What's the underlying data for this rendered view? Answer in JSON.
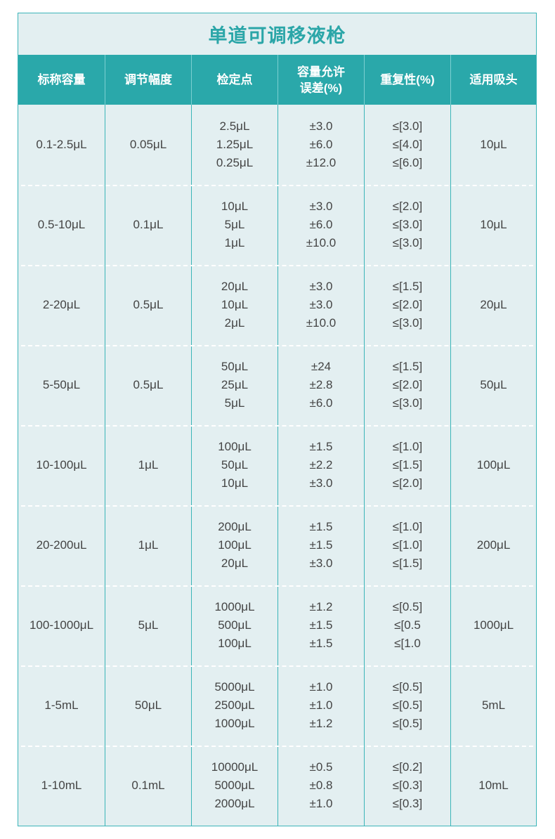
{
  "title": "单道可调移液枪",
  "headers": [
    "标称容量",
    "调节幅度",
    "检定点",
    "容量允许\n误差(%)",
    "重复性(%)",
    "适用吸头"
  ],
  "rows": [
    {
      "range": "0.1-2.5μL",
      "step": "0.05μL",
      "points": [
        "2.5μL",
        "1.25μL",
        "0.25μL"
      ],
      "error": [
        "±3.0",
        "±6.0",
        "±12.0"
      ],
      "repeat": [
        "≤[3.0]",
        "≤[4.0]",
        "≤[6.0]"
      ],
      "tip": "10μL"
    },
    {
      "range": "0.5-10μL",
      "step": "0.1μL",
      "points": [
        "10μL",
        "5μL",
        "1μL"
      ],
      "error": [
        "±3.0",
        "±6.0",
        "±10.0"
      ],
      "repeat": [
        "≤[2.0]",
        "≤[3.0]",
        "≤[3.0]"
      ],
      "tip": "10μL"
    },
    {
      "range": "2-20μL",
      "step": "0.5μL",
      "points": [
        "20μL",
        "10μL",
        "2μL"
      ],
      "error": [
        "±3.0",
        "±3.0",
        "±10.0"
      ],
      "repeat": [
        "≤[1.5]",
        "≤[2.0]",
        "≤[3.0]"
      ],
      "tip": "20μL"
    },
    {
      "range": "5-50μL",
      "step": "0.5μL",
      "points": [
        "50μL",
        "25μL",
        "5μL"
      ],
      "error": [
        "±24",
        "±2.8",
        "±6.0"
      ],
      "repeat": [
        "≤[1.5]",
        "≤[2.0]",
        "≤[3.0]"
      ],
      "tip": "50μL"
    },
    {
      "range": "10-100μL",
      "step": "1μL",
      "points": [
        "100μL",
        "50μL",
        "10μL"
      ],
      "error": [
        "±1.5",
        "±2.2",
        "±3.0"
      ],
      "repeat": [
        "≤[1.0]",
        "≤[1.5]",
        "≤[2.0]"
      ],
      "tip": "100μL"
    },
    {
      "range": "20-200uL",
      "step": "1μL",
      "points": [
        "200μL",
        "100μL",
        "20μL"
      ],
      "error": [
        "±1.5",
        "±1.5",
        "±3.0"
      ],
      "repeat": [
        "≤[1.0]",
        "≤[1.0]",
        "≤[1.5]"
      ],
      "tip": "200μL"
    },
    {
      "range": "100-1000μL",
      "step": "5μL",
      "points": [
        "1000μL",
        "500μL",
        "100μL"
      ],
      "error": [
        "±1.2",
        "±1.5",
        "±1.5"
      ],
      "repeat": [
        "≤[0.5]",
        "≤[0.5",
        "≤[1.0"
      ],
      "tip": "1000μL"
    },
    {
      "range": "1-5mL",
      "step": "50μL",
      "points": [
        "5000μL",
        "2500μL",
        "1000μL"
      ],
      "error": [
        "±1.0",
        "±1.0",
        "±1.2"
      ],
      "repeat": [
        "≤[0.5]",
        "≤[0.5]",
        "≤[0.5]"
      ],
      "tip": "5mL"
    },
    {
      "range": "1-10mL",
      "step": "0.1mL",
      "points": [
        "10000μL",
        "5000μL",
        "2000μL"
      ],
      "error": [
        "±0.5",
        "±0.8",
        "±1.0"
      ],
      "repeat": [
        "≤[0.2]",
        "≤[0.3]",
        "≤[0.3]"
      ],
      "tip": "10mL"
    }
  ]
}
